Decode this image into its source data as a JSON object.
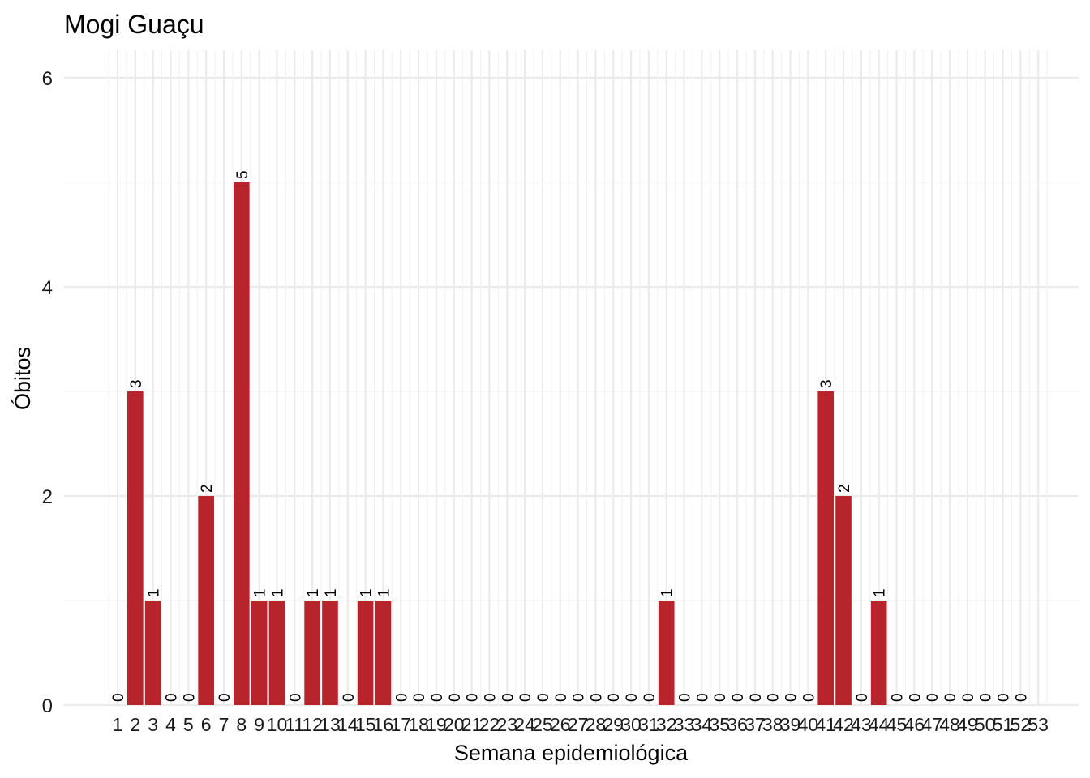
{
  "chart_data": {
    "type": "bar",
    "title": "Mogi Guaçu",
    "xlabel": "Semana epidemiológica",
    "ylabel": "Óbitos",
    "categories": [
      "1",
      "2",
      "3",
      "4",
      "5",
      "6",
      "7",
      "8",
      "9",
      "10",
      "11",
      "12",
      "13",
      "14",
      "15",
      "16",
      "17",
      "18",
      "19",
      "20",
      "21",
      "22",
      "23",
      "24",
      "25",
      "26",
      "27",
      "28",
      "29",
      "30",
      "31",
      "32",
      "33",
      "34",
      "35",
      "36",
      "37",
      "38",
      "39",
      "40",
      "41",
      "42",
      "43",
      "44",
      "45",
      "46",
      "47",
      "48",
      "49",
      "50",
      "51",
      "52",
      "53"
    ],
    "values": [
      0,
      3,
      1,
      0,
      0,
      2,
      0,
      5,
      1,
      1,
      0,
      1,
      1,
      0,
      1,
      1,
      0,
      0,
      0,
      0,
      0,
      0,
      0,
      0,
      0,
      0,
      0,
      0,
      0,
      0,
      0,
      1,
      0,
      0,
      0,
      0,
      0,
      0,
      0,
      0,
      3,
      2,
      0,
      1,
      0,
      0,
      0,
      0,
      0,
      0,
      0,
      0,
      null
    ],
    "ylim": [
      0,
      6.2
    ],
    "yticks": [
      0,
      2,
      4,
      6
    ],
    "bar_color": "#b8242b",
    "grid": true,
    "legend": "none"
  }
}
